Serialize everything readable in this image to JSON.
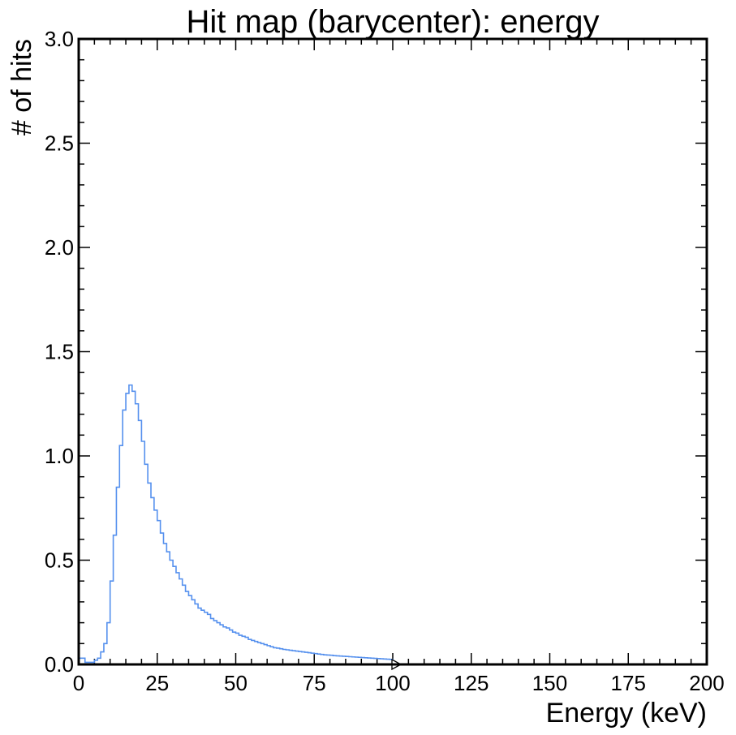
{
  "chart_data": {
    "type": "histogram",
    "title": "Hit map (barycenter): energy",
    "xlabel": "Energy (keV)",
    "ylabel": "# of hits",
    "xlim": [
      0,
      200
    ],
    "ylim": [
      0,
      3.0
    ],
    "x_ticks": [
      "0",
      "25",
      "50",
      "75",
      "100",
      "125",
      "150",
      "175",
      "200"
    ],
    "y_ticks": [
      "0.0",
      "0.5",
      "1.0",
      "1.5",
      "2.0",
      "2.5",
      "3.0"
    ],
    "bin_width": 1,
    "bin_start": 0,
    "overflow_marker_x": 100,
    "series": [
      {
        "color": "#5590ee",
        "values": [
          0.03,
          0.03,
          0.01,
          0.01,
          0.01,
          0.02,
          0.03,
          0.06,
          0.1,
          0.2,
          0.4,
          0.62,
          0.85,
          1.05,
          1.22,
          1.3,
          1.34,
          1.31,
          1.25,
          1.17,
          1.07,
          0.96,
          0.87,
          0.8,
          0.74,
          0.69,
          0.63,
          0.58,
          0.54,
          0.5,
          0.47,
          0.44,
          0.41,
          0.38,
          0.35,
          0.33,
          0.31,
          0.29,
          0.27,
          0.26,
          0.25,
          0.24,
          0.22,
          0.21,
          0.2,
          0.19,
          0.18,
          0.175,
          0.165,
          0.155,
          0.15,
          0.14,
          0.135,
          0.13,
          0.12,
          0.115,
          0.11,
          0.105,
          0.1,
          0.095,
          0.09,
          0.085,
          0.08,
          0.078,
          0.075,
          0.072,
          0.07,
          0.068,
          0.066,
          0.064,
          0.062,
          0.06,
          0.058,
          0.056,
          0.054,
          0.052,
          0.05,
          0.048,
          0.046,
          0.045,
          0.044,
          0.042,
          0.041,
          0.04,
          0.039,
          0.038,
          0.037,
          0.036,
          0.035,
          0.034,
          0.033,
          0.032,
          0.031,
          0.03,
          0.029,
          0.028,
          0.027,
          0.026,
          0.025,
          0.024
        ]
      }
    ],
    "grid": false,
    "legend": "none"
  }
}
